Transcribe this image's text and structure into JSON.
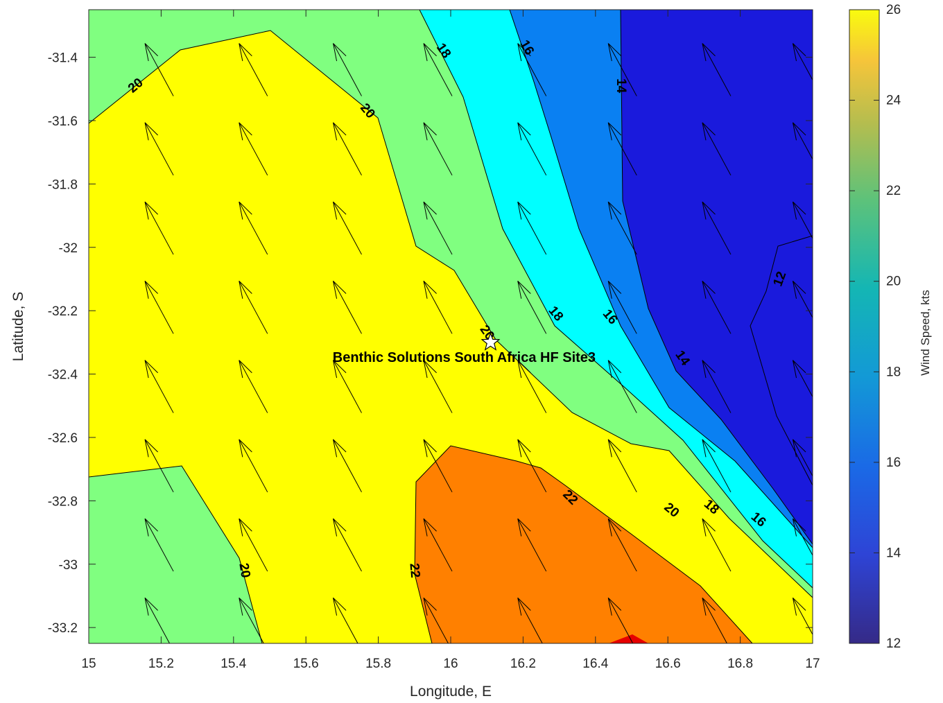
{
  "chart_data": {
    "type": "contourf",
    "title": "",
    "xlabel": "Longitude, E",
    "ylabel": "Latitude, S",
    "xlim": [
      15,
      17
    ],
    "ylim": [
      -33.25,
      -31.25
    ],
    "xticks": [
      "15",
      "15.2",
      "15.4",
      "15.6",
      "15.8",
      "16",
      "16.2",
      "16.4",
      "16.6",
      "16.8",
      "17"
    ],
    "yticks": [
      "-31.4",
      "-31.6",
      "-31.8",
      "-32",
      "-32.2",
      "-32.4",
      "-32.6",
      "-32.8",
      "-33",
      "-33.2"
    ],
    "colorbar": {
      "label": "Wind Speed, kts",
      "range": [
        12,
        26
      ],
      "ticks": [
        "12",
        "14",
        "16",
        "18",
        "20",
        "22",
        "24",
        "26"
      ]
    },
    "contour_levels": [
      12,
      14,
      16,
      18,
      20,
      22,
      24
    ],
    "bands": [
      {
        "range": "<12",
        "color": "#1a1adc"
      },
      {
        "range": "12-16",
        "color": "#0a80f2"
      },
      {
        "range": "16-18",
        "color": "#00ffff"
      },
      {
        "range": "18-20",
        "color": "#80ff80"
      },
      {
        "range": "20-22",
        "color": "#ffff00"
      },
      {
        "range": "22-24",
        "color": "#ff8000"
      },
      {
        "range": ">24",
        "color": "#e60000"
      }
    ],
    "contour_labels": [
      {
        "text": "20",
        "lon": 15.13,
        "lat": -31.49,
        "angle": -40
      },
      {
        "text": "20",
        "lon": 15.77,
        "lat": -31.57,
        "angle": 50
      },
      {
        "text": "18",
        "lon": 15.98,
        "lat": -31.38,
        "angle": 55
      },
      {
        "text": "16",
        "lon": 16.21,
        "lat": -31.37,
        "angle": 60
      },
      {
        "text": "14",
        "lon": 16.47,
        "lat": -31.49,
        "angle": 90
      },
      {
        "text": "12",
        "lon": 16.91,
        "lat": -32.1,
        "angle": -70
      },
      {
        "text": "18",
        "lon": 16.29,
        "lat": -32.21,
        "angle": 50
      },
      {
        "text": "16",
        "lon": 16.44,
        "lat": -32.22,
        "angle": 50
      },
      {
        "text": "20",
        "lon": 16.1,
        "lat": -32.27,
        "angle": 55
      },
      {
        "text": "14",
        "lon": 16.64,
        "lat": -32.35,
        "angle": 55
      },
      {
        "text": "22",
        "lon": 16.33,
        "lat": -32.79,
        "angle": 45
      },
      {
        "text": "20",
        "lon": 16.61,
        "lat": -32.83,
        "angle": 40
      },
      {
        "text": "18",
        "lon": 16.72,
        "lat": -32.82,
        "angle": 40
      },
      {
        "text": "16",
        "lon": 16.85,
        "lat": -32.86,
        "angle": 40
      },
      {
        "text": "20",
        "lon": 15.43,
        "lat": -33.02,
        "angle": 80
      },
      {
        "text": "22",
        "lon": 15.9,
        "lat": -33.02,
        "angle": 85
      }
    ],
    "wind_vectors": {
      "direction_from": "SE",
      "lon": [
        15.14,
        15.4,
        15.66,
        15.91,
        16.17,
        16.42,
        16.68,
        16.93
      ],
      "lat": [
        -31.4,
        -31.65,
        -31.9,
        -32.15,
        -32.4,
        -32.65,
        -32.9,
        -33.15
      ]
    },
    "annotations": [
      {
        "text": "Benthic Solutions South Africa HF Site3",
        "lon": 16.11,
        "lat": -32.3,
        "marker": "star"
      }
    ]
  }
}
